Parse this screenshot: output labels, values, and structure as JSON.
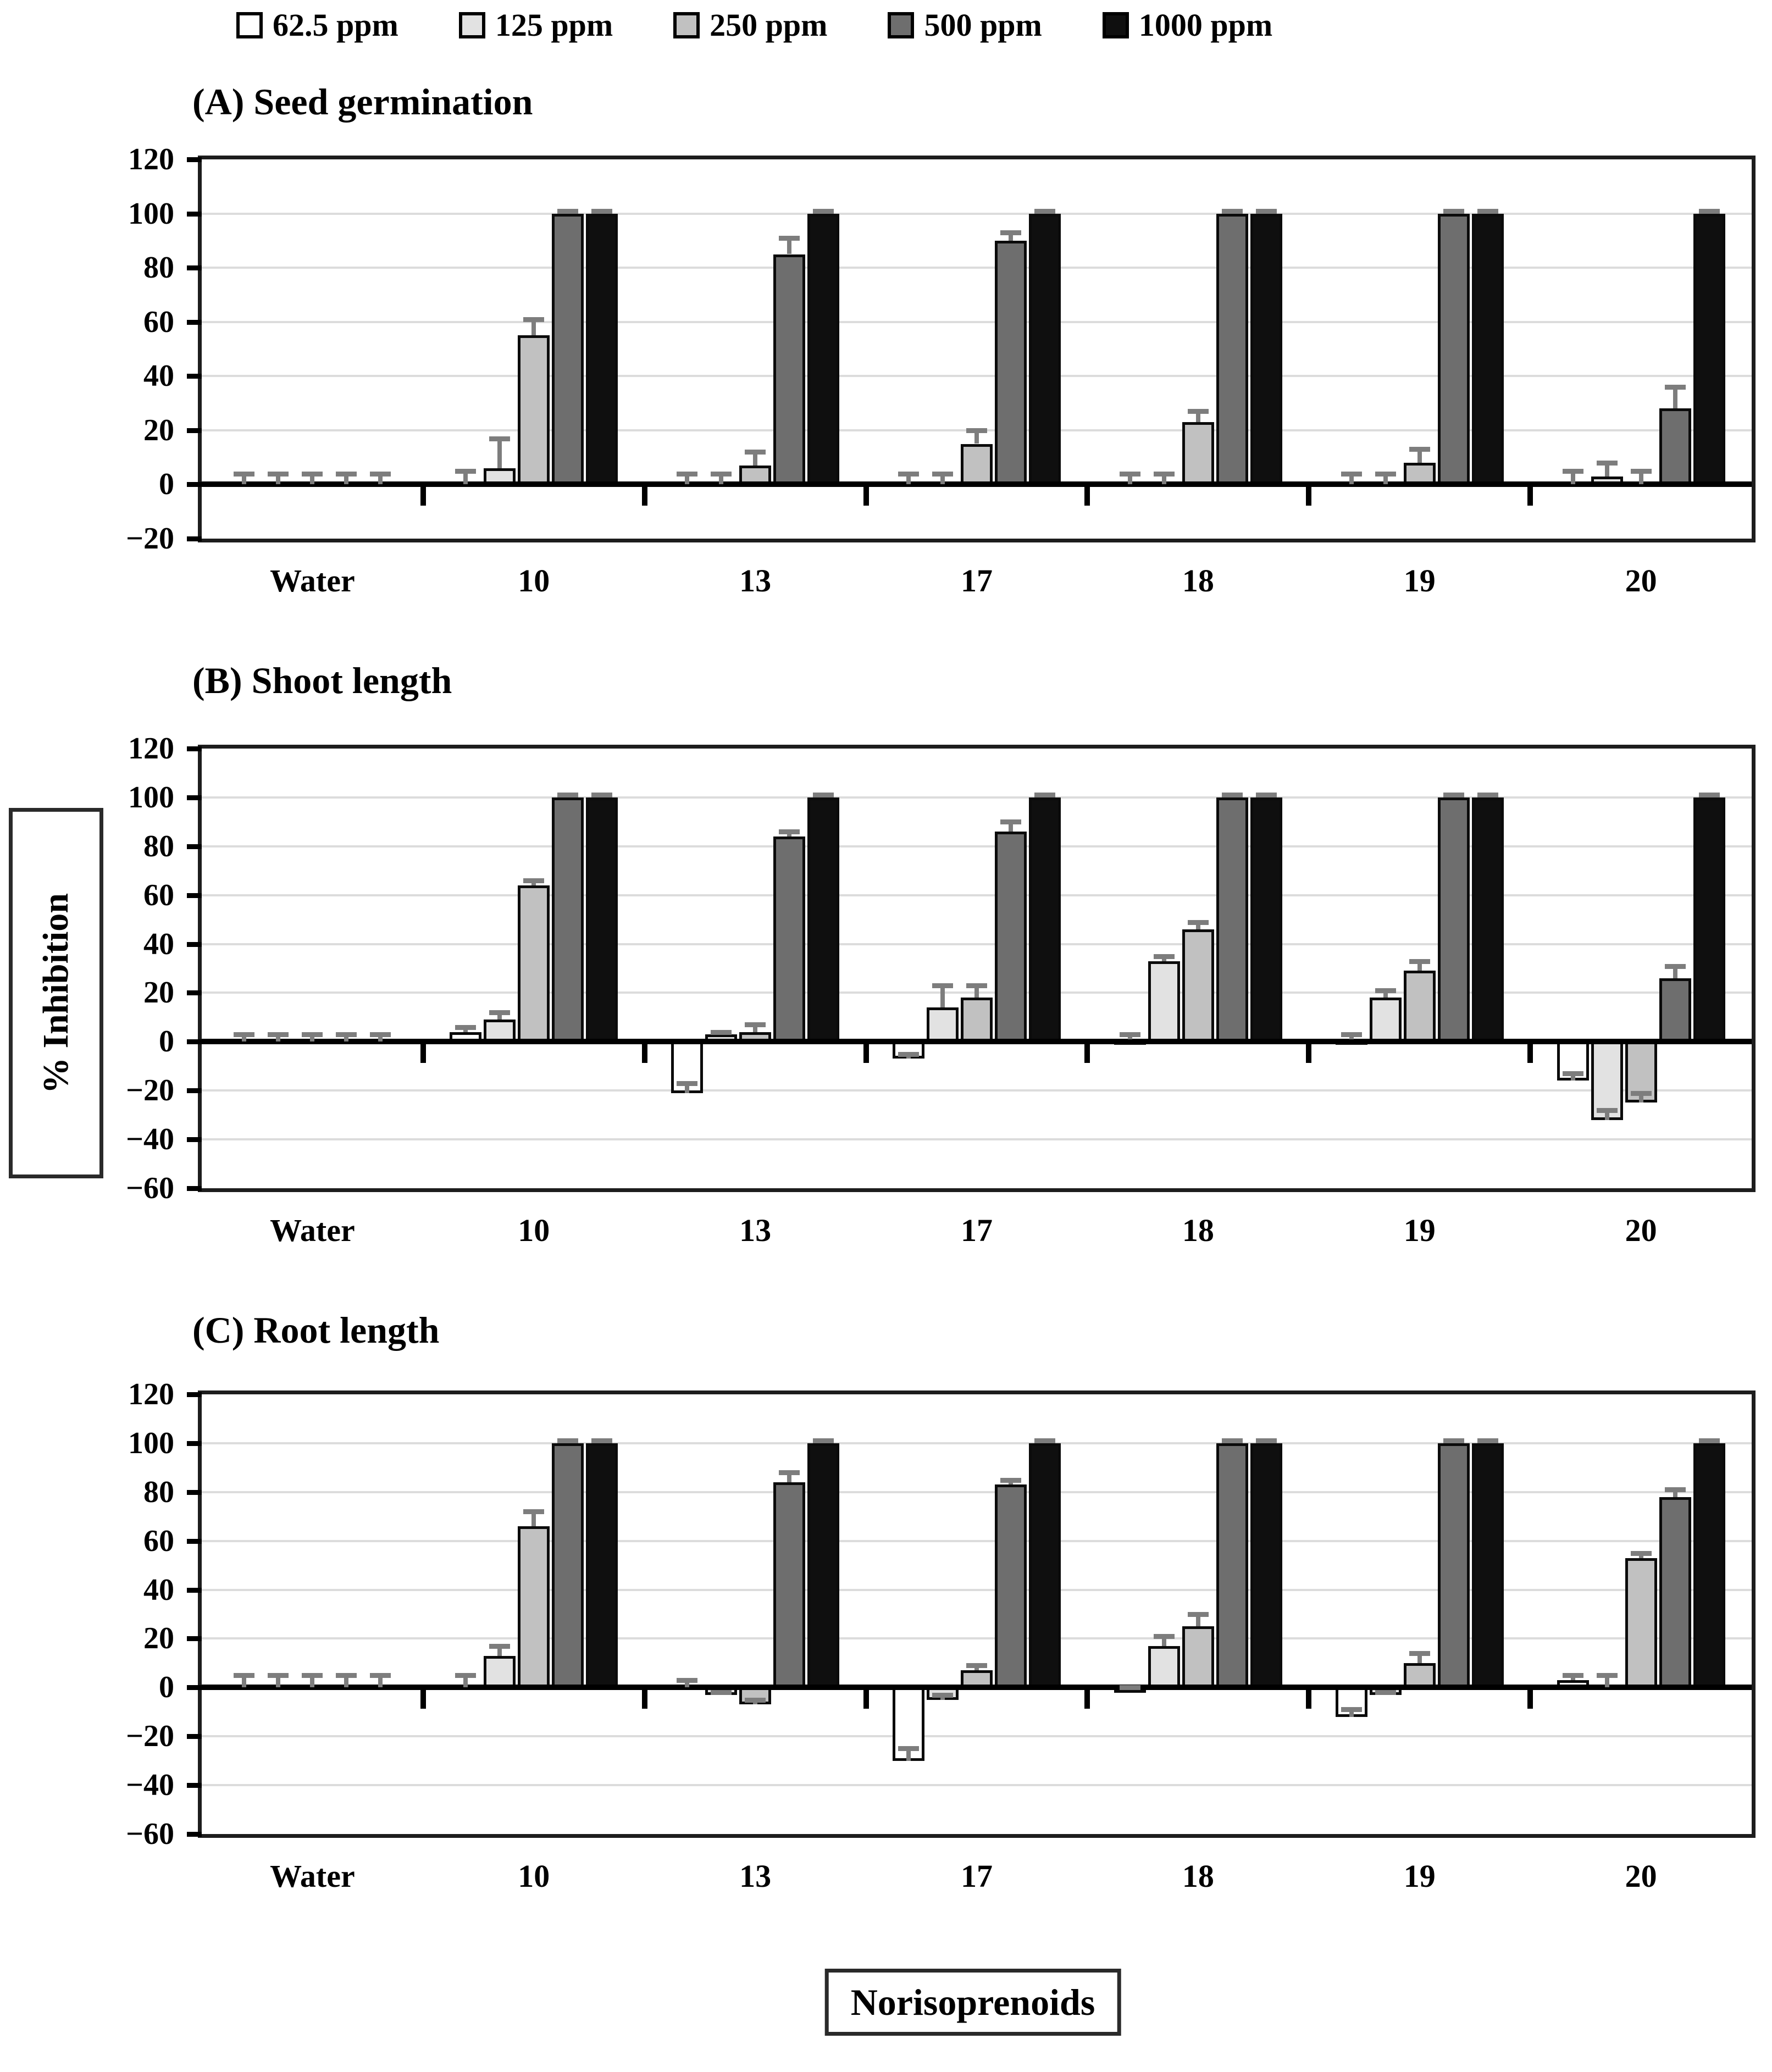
{
  "legend": {
    "items": [
      {
        "label": "62.5 ppm",
        "color": "#ffffff"
      },
      {
        "label": "125 ppm",
        "color": "#e2e2e2"
      },
      {
        "label": "250 ppm",
        "color": "#c1c1c1"
      },
      {
        "label": "500 ppm",
        "color": "#6e6e6e"
      },
      {
        "label": "1000 ppm",
        "color": "#0f0f0f"
      }
    ]
  },
  "shared_axis": {
    "ylabel": "% Inhibition",
    "xlabel": "Norisoprenoids"
  },
  "chart_data": [
    {
      "type": "bar",
      "title": "(A) Seed germination",
      "categories": [
        "Water",
        "10",
        "13",
        "17",
        "18",
        "19",
        "20"
      ],
      "ylim": [
        -20,
        120
      ],
      "yticks": [
        120,
        100,
        80,
        60,
        40,
        20,
        0,
        -20
      ],
      "ytick_labels": [
        "120",
        "100",
        "80",
        "60",
        "40",
        "20",
        "0",
        "−20"
      ],
      "grid": true,
      "legend_position": "top",
      "series": [
        {
          "name": "62.5 ppm",
          "color": "#ffffff",
          "values": [
            0,
            0,
            0,
            0,
            0,
            0,
            0
          ],
          "errors": [
            4,
            5,
            4,
            4,
            4,
            4,
            5
          ]
        },
        {
          "name": "125 ppm",
          "color": "#e2e2e2",
          "values": [
            0,
            6,
            0,
            0,
            0,
            0,
            3
          ],
          "errors": [
            4,
            11,
            4,
            4,
            4,
            4,
            5
          ]
        },
        {
          "name": "250 ppm",
          "color": "#c1c1c1",
          "values": [
            0,
            55,
            7,
            15,
            23,
            8,
            0
          ],
          "errors": [
            4,
            6,
            5,
            5,
            4,
            5,
            5
          ]
        },
        {
          "name": "500 ppm",
          "color": "#6e6e6e",
          "values": [
            0,
            100,
            85,
            90,
            100,
            100,
            28
          ],
          "errors": [
            4,
            1,
            6,
            3,
            1,
            1,
            8
          ]
        },
        {
          "name": "1000 ppm",
          "color": "#0f0f0f",
          "values": [
            0,
            100,
            100,
            100,
            100,
            100,
            100
          ],
          "errors": [
            4,
            1,
            1,
            1,
            1,
            1,
            1
          ]
        }
      ]
    },
    {
      "type": "bar",
      "title": "(B) Shoot length",
      "categories": [
        "Water",
        "10",
        "13",
        "17",
        "18",
        "19",
        "20"
      ],
      "ylim": [
        -60,
        120
      ],
      "yticks": [
        120,
        100,
        80,
        60,
        40,
        20,
        0,
        -20,
        -40,
        -60
      ],
      "ytick_labels": [
        "120",
        "100",
        "80",
        "60",
        "40",
        "20",
        "0",
        "−20",
        "−40",
        "−60"
      ],
      "grid": true,
      "legend_position": "top",
      "series": [
        {
          "name": "62.5 ppm",
          "color": "#ffffff",
          "values": [
            0,
            4,
            -21,
            -7,
            1,
            1,
            -16
          ],
          "errors": [
            3,
            2,
            4,
            2,
            2,
            2,
            3
          ]
        },
        {
          "name": "125 ppm",
          "color": "#e2e2e2",
          "values": [
            0,
            9,
            3,
            14,
            33,
            18,
            -32
          ],
          "errors": [
            3,
            3,
            1,
            9,
            2,
            3,
            4
          ]
        },
        {
          "name": "250 ppm",
          "color": "#c1c1c1",
          "values": [
            0,
            64,
            4,
            18,
            46,
            29,
            -25
          ],
          "errors": [
            3,
            2,
            3,
            5,
            3,
            4,
            4
          ]
        },
        {
          "name": "500 ppm",
          "color": "#6e6e6e",
          "values": [
            0,
            100,
            84,
            86,
            100,
            100,
            26
          ],
          "errors": [
            3,
            1,
            2,
            4,
            1,
            1,
            5
          ]
        },
        {
          "name": "1000 ppm",
          "color": "#0f0f0f",
          "values": [
            0,
            100,
            100,
            100,
            100,
            100,
            100
          ],
          "errors": [
            3,
            1,
            1,
            1,
            1,
            1,
            1
          ]
        }
      ]
    },
    {
      "type": "bar",
      "title": "(C) Root length",
      "categories": [
        "Water",
        "10",
        "13",
        "17",
        "18",
        "19",
        "20"
      ],
      "ylim": [
        -60,
        120
      ],
      "yticks": [
        120,
        100,
        80,
        60,
        40,
        20,
        0,
        -20,
        -40,
        -60
      ],
      "ytick_labels": [
        "120",
        "100",
        "80",
        "60",
        "40",
        "20",
        "0",
        "−20",
        "−40",
        "−60"
      ],
      "grid": true,
      "legend_position": "top",
      "series": [
        {
          "name": "62.5 ppm",
          "color": "#ffffff",
          "values": [
            0,
            0,
            0,
            -30,
            -1,
            -12,
            3
          ],
          "errors": [
            5,
            5,
            3,
            5,
            1,
            3,
            2
          ]
        },
        {
          "name": "125 ppm",
          "color": "#e2e2e2",
          "values": [
            0,
            13,
            -3,
            -5,
            17,
            -3,
            0
          ],
          "errors": [
            5,
            4,
            1,
            2,
            4,
            1,
            5
          ]
        },
        {
          "name": "250 ppm",
          "color": "#c1c1c1",
          "values": [
            0,
            66,
            -7,
            7,
            25,
            10,
            53
          ],
          "errors": [
            5,
            6,
            2,
            2,
            5,
            4,
            2
          ]
        },
        {
          "name": "500 ppm",
          "color": "#6e6e6e",
          "values": [
            0,
            100,
            84,
            83,
            100,
            100,
            78
          ],
          "errors": [
            5,
            1,
            4,
            2,
            1,
            1,
            3
          ]
        },
        {
          "name": "1000 ppm",
          "color": "#0f0f0f",
          "values": [
            0,
            100,
            100,
            100,
            100,
            100,
            100
          ],
          "errors": [
            5,
            1,
            1,
            1,
            1,
            1,
            1
          ]
        }
      ]
    }
  ]
}
